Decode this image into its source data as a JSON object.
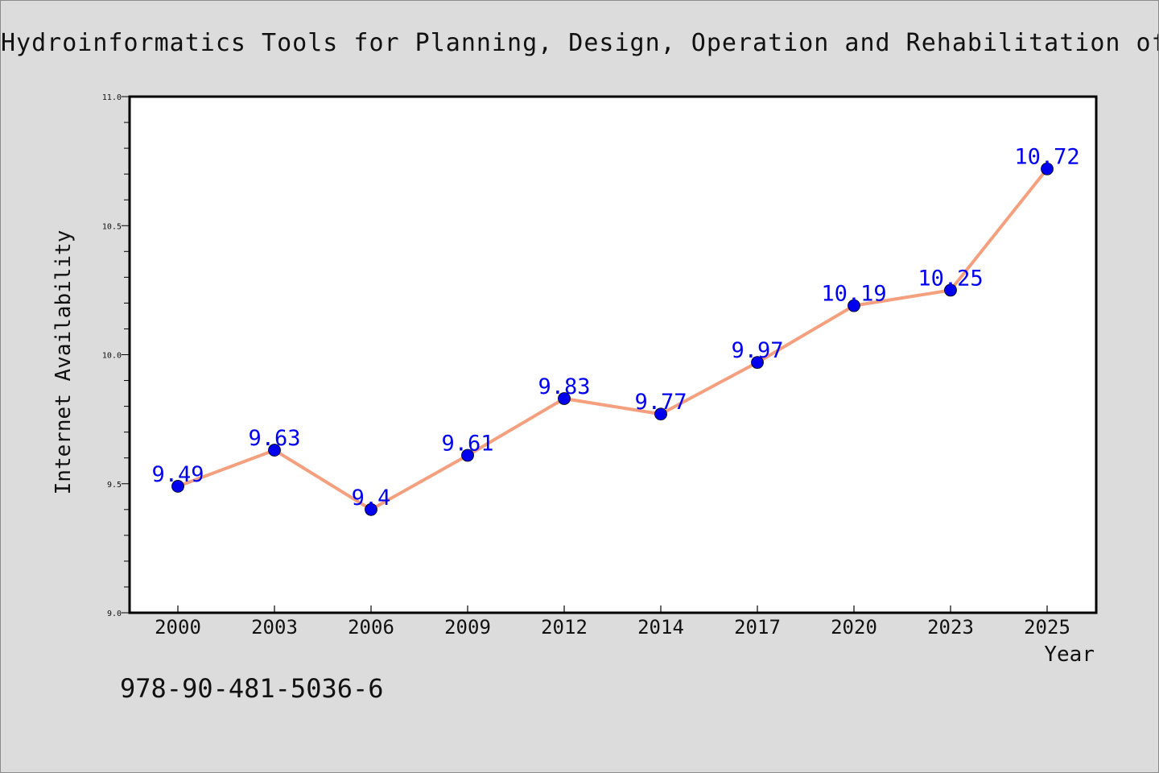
{
  "page": {
    "title": "Hydroinformatics Tools for Planning, Design, Operation and Rehabilitation of Sew",
    "footer_text": "978-90-481-5036-6"
  },
  "colors": {
    "background": "#dcdcdc",
    "plot_background": "#ffffff",
    "line": "#f4a07e",
    "marker": "#0000ee",
    "data_label": "#0000ee",
    "text": "#111111"
  },
  "chart_data": {
    "type": "line",
    "title": "Hydroinformatics Tools for Planning, Design, Operation and Rehabilitation of Sew",
    "xlabel": "Year",
    "ylabel": "Internet Availability",
    "categories": [
      "2000",
      "2003",
      "2006",
      "2009",
      "2012",
      "2014",
      "2017",
      "2020",
      "2023",
      "2025"
    ],
    "series": [
      {
        "values": [
          9.49,
          9.63,
          9.4,
          9.61,
          9.83,
          9.77,
          9.97,
          10.19,
          10.25,
          10.72
        ]
      }
    ],
    "data_labels": [
      "9.49",
      "9.63",
      "9.4",
      "9.61",
      "9.83",
      "9.77",
      "9.97",
      "10.19",
      "10.25",
      "10.72"
    ],
    "ylim": [
      9.0,
      11.0
    ],
    "yticks": [
      "9.0",
      "9.5",
      "10.0",
      "10.5",
      "11.0"
    ],
    "grid": false,
    "legend": "none"
  }
}
